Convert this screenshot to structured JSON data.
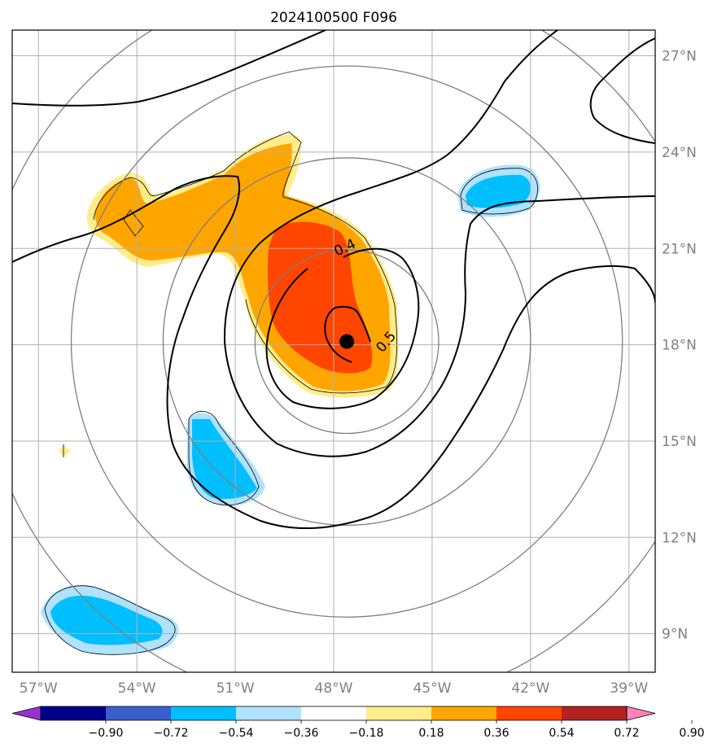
{
  "title": "2024100500 F096",
  "map": {
    "lon_range": [
      -57.8,
      -38.2
    ],
    "lat_range": [
      7.8,
      27.8
    ],
    "lon_ticks": [
      {
        "value": -57,
        "label": "57°W"
      },
      {
        "value": -54,
        "label": "54°W"
      },
      {
        "value": -51,
        "label": "51°W"
      },
      {
        "value": -48,
        "label": "48°W"
      },
      {
        "value": -45,
        "label": "45°W"
      },
      {
        "value": -42,
        "label": "42°W"
      },
      {
        "value": -39,
        "label": "39°W"
      }
    ],
    "lat_ticks": [
      {
        "value": 9,
        "label": "9°N"
      },
      {
        "value": 12,
        "label": "12°N"
      },
      {
        "value": 15,
        "label": "15°N"
      },
      {
        "value": 18,
        "label": "18°N"
      },
      {
        "value": 21,
        "label": "21°N"
      },
      {
        "value": 24,
        "label": "24°N"
      },
      {
        "value": 27,
        "label": "27°N"
      }
    ],
    "storm_center": {
      "lon": -47.6,
      "lat": 18.1
    },
    "range_rings_deg": [
      2.8,
      5.6,
      8.4,
      11.2
    ],
    "contour_labels": [
      {
        "text": "0.4",
        "lon": -47.6,
        "lat": 20.9,
        "angle": -25
      },
      {
        "text": "0.5",
        "lon": -46.3,
        "lat": 18.0,
        "angle": -50
      }
    ]
  },
  "colorbar": {
    "colors": [
      "#9932cc",
      "#00008b",
      "#3a5fcd",
      "#00bfff",
      "#b0e2ff",
      "#ffffff",
      "#ffec8b",
      "#ffa500",
      "#ff4500",
      "#b22222",
      "#ff83b4"
    ],
    "tick_labels": [
      "−0.90",
      "−0.72",
      "−0.54",
      "−0.36",
      "−0.18",
      "0.18",
      "0.36",
      "0.54",
      "0.72",
      "0.90"
    ]
  },
  "colors": {
    "grid": "#b0b0b0",
    "ring": "#7f7f7f",
    "light_yellow": "#ffec8b",
    "orange": "#ffa500",
    "red_orange": "#ff4500",
    "light_blue": "#b0e2ff",
    "deep_sky": "#00bfff"
  }
}
